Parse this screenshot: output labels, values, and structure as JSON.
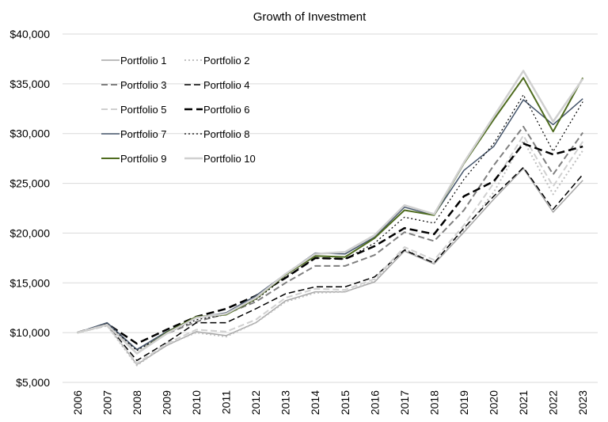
{
  "chart_data": {
    "type": "line",
    "title": "Growth of Investment",
    "xlabel": "",
    "ylabel": "",
    "ylim": [
      5000,
      40000
    ],
    "yticks": [
      5000,
      10000,
      15000,
      20000,
      25000,
      30000,
      35000,
      40000
    ],
    "ytick_labels": [
      "$5,000",
      "$10,000",
      "$15,000",
      "$20,000",
      "$25,000",
      "$30,000",
      "$35,000",
      "$40,000"
    ],
    "categories": [
      "2006",
      "2007",
      "2008",
      "2009",
      "2010",
      "2011",
      "2012",
      "2013",
      "2014",
      "2015",
      "2016",
      "2017",
      "2018",
      "2019",
      "2020",
      "2021",
      "2022",
      "2023"
    ],
    "grid": "horizontal",
    "legend_position": "top-left",
    "series": [
      {
        "name": "Portfolio 1",
        "color": "#a6a6a6",
        "dash": "solid",
        "width": 1.5,
        "values": [
          10000,
          10800,
          6800,
          8700,
          10100,
          9700,
          11000,
          13200,
          14100,
          14100,
          15100,
          18200,
          16900,
          20100,
          23400,
          26500,
          22100,
          25300
        ]
      },
      {
        "name": "Portfolio 2",
        "color": "#bfbfbf",
        "dash": "dot",
        "width": 2,
        "values": [
          10000,
          10700,
          6700,
          8800,
          10000,
          9600,
          11000,
          13100,
          14000,
          14100,
          15200,
          18400,
          17000,
          20300,
          24100,
          29300,
          23900,
          28300
        ]
      },
      {
        "name": "Portfolio 3",
        "color": "#7f7f7f",
        "dash": "dash",
        "width": 2,
        "values": [
          10000,
          10700,
          8300,
          9900,
          11100,
          11900,
          13100,
          15000,
          16700,
          16700,
          17800,
          20100,
          19200,
          22300,
          26800,
          30700,
          25900,
          30100
        ]
      },
      {
        "name": "Portfolio 4",
        "color": "#000000",
        "dash": "dash",
        "width": 1.5,
        "values": [
          10000,
          10800,
          7200,
          9000,
          11000,
          11000,
          12400,
          13900,
          14600,
          14600,
          15600,
          18300,
          17000,
          20500,
          23700,
          26600,
          22400,
          25900
        ]
      },
      {
        "name": "Portfolio 5",
        "color": "#d0d0d0",
        "dash": "dash",
        "width": 2,
        "values": [
          10000,
          10700,
          6900,
          8900,
          10300,
          10100,
          11300,
          13500,
          14400,
          14300,
          15400,
          18600,
          17300,
          20800,
          25000,
          29800,
          24700,
          29200
        ]
      },
      {
        "name": "Portfolio 6",
        "color": "#000000",
        "dash": "longdash",
        "width": 2.5,
        "values": [
          10000,
          10900,
          8900,
          10300,
          11600,
          12400,
          13700,
          15500,
          17500,
          17400,
          18700,
          20500,
          19900,
          23700,
          25200,
          29000,
          27900,
          28700
        ]
      },
      {
        "name": "Portfolio 7",
        "color": "#44546a",
        "dash": "solid",
        "width": 1.5,
        "values": [
          10000,
          11000,
          8300,
          10100,
          11500,
          12000,
          13700,
          15900,
          18000,
          17900,
          19600,
          22600,
          21800,
          26300,
          28700,
          33400,
          30900,
          33500
        ]
      },
      {
        "name": "Portfolio 8",
        "color": "#000000",
        "dash": "dot",
        "width": 1.2,
        "values": [
          10000,
          10900,
          8200,
          9900,
          11300,
          11800,
          13300,
          15600,
          17500,
          17400,
          19000,
          21600,
          21000,
          25400,
          29000,
          33900,
          28200,
          33200
        ]
      },
      {
        "name": "Portfolio 9",
        "color": "#4e6b1e",
        "dash": "solid",
        "width": 2,
        "values": [
          10000,
          10800,
          7900,
          10000,
          11600,
          11800,
          13400,
          15800,
          17700,
          17600,
          19500,
          22300,
          21800,
          27000,
          31400,
          35600,
          30200,
          35600
        ]
      },
      {
        "name": "Portfolio 10",
        "color": "#d0d0d0",
        "dash": "solid",
        "width": 2.5,
        "values": [
          10000,
          10800,
          7900,
          9900,
          11500,
          11900,
          13500,
          15900,
          17900,
          18100,
          19800,
          22800,
          21900,
          27100,
          31700,
          36300,
          31200,
          35500
        ]
      }
    ]
  }
}
